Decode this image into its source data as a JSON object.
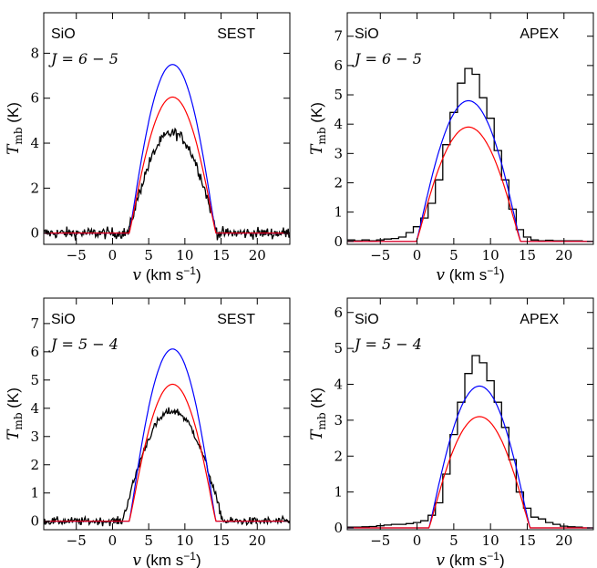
{
  "chart_data": [
    {
      "type": "line",
      "species": "SiO",
      "telescope": "SEST",
      "transition": "J = 6 − 5",
      "xlabel": "v (km s⁻¹)",
      "ylabel": "Tmb (K)",
      "xlim": [
        -9.5,
        24.5
      ],
      "ylim": [
        -0.5,
        9.8
      ],
      "xticks": [
        -5,
        0,
        5,
        10,
        15,
        20
      ],
      "yticks": [
        0,
        2,
        4,
        6,
        8
      ],
      "series": [
        {
          "color": "#000000",
          "style": "noisy",
          "peak": 4.45,
          "center": 8.3,
          "half_width": 6.2,
          "noise": 0.18
        },
        {
          "color": "#0000ff",
          "style": "model",
          "peak": 7.5,
          "center": 8.3,
          "half_width": 6.0
        },
        {
          "color": "#ff0000",
          "style": "model",
          "peak": 6.05,
          "center": 8.3,
          "half_width": 6.0
        }
      ]
    },
    {
      "type": "line",
      "species": "SiO",
      "telescope": "APEX",
      "transition": "J = 6 − 5",
      "xlabel": "v (km s⁻¹)",
      "ylabel": "Tmb (K)",
      "xlim": [
        -9.5,
        24
      ],
      "ylim": [
        -0.1,
        7.8
      ],
      "xticks": [
        -5,
        0,
        5,
        10,
        15,
        20
      ],
      "yticks": [
        0,
        1,
        2,
        3,
        4,
        5,
        6,
        7
      ],
      "series": [
        {
          "color": "#000000",
          "style": "step",
          "x": [
            -9,
            -8,
            -7,
            -6,
            -5,
            -4,
            -3,
            -2,
            -1,
            0,
            1,
            2,
            3,
            4,
            5,
            6,
            7,
            8,
            9,
            10,
            11,
            12,
            13,
            14,
            15,
            16,
            17,
            18,
            19,
            20,
            21,
            22,
            23
          ],
          "y": [
            0.05,
            0.02,
            0.05,
            0.02,
            0.05,
            0.08,
            0.1,
            0.15,
            0.3,
            0.5,
            0.8,
            1.3,
            2.1,
            3.3,
            4.4,
            5.4,
            5.9,
            5.7,
            4.9,
            4.2,
            3.1,
            2.1,
            1.1,
            0.4,
            0.15,
            0.05,
            0.02,
            0.04,
            0.02,
            0.02,
            0.02,
            0.02,
            0.0
          ]
        },
        {
          "color": "#0000ff",
          "style": "model",
          "peak": 4.8,
          "center": 7.0,
          "half_width": 7.1
        },
        {
          "color": "#ff0000",
          "style": "model",
          "peak": 3.9,
          "center": 7.0,
          "half_width": 7.1
        }
      ]
    },
    {
      "type": "line",
      "species": "SiO",
      "telescope": "SEST",
      "transition": "J = 5 − 4",
      "xlabel": "v (km s⁻¹)",
      "ylabel": "Tmb (K)",
      "xlim": [
        -9.5,
        24.5
      ],
      "ylim": [
        -0.3,
        7.9
      ],
      "xticks": [
        -5,
        0,
        5,
        10,
        15,
        20
      ],
      "yticks": [
        0,
        1,
        2,
        3,
        4,
        5,
        6,
        7
      ],
      "series": [
        {
          "color": "#000000",
          "style": "noisy",
          "peak": 3.9,
          "center": 8.3,
          "half_width": 7.0,
          "noise": 0.1
        },
        {
          "color": "#0000ff",
          "style": "model",
          "peak": 6.1,
          "center": 8.3,
          "half_width": 6.0
        },
        {
          "color": "#ff0000",
          "style": "model",
          "peak": 4.85,
          "center": 8.3,
          "half_width": 6.0
        }
      ]
    },
    {
      "type": "line",
      "species": "SiO",
      "telescope": "APEX",
      "transition": "J = 5 − 4",
      "xlabel": "v (km s⁻¹)",
      "ylabel": "Tmb (K)",
      "xlim": [
        -9.5,
        24
      ],
      "ylim": [
        -0.05,
        6.4
      ],
      "xticks": [
        -5,
        0,
        5,
        10,
        15,
        20
      ],
      "yticks": [
        0,
        1,
        2,
        3,
        4,
        5,
        6
      ],
      "series": [
        {
          "color": "#000000",
          "style": "step",
          "x": [
            -9,
            -8,
            -7,
            -6,
            -5,
            -4,
            -3,
            -2,
            -1,
            0,
            1,
            2,
            3,
            4,
            5,
            6,
            7,
            8,
            9,
            10,
            11,
            12,
            13,
            14,
            15,
            16,
            17,
            18,
            19,
            20,
            21,
            22,
            23
          ],
          "y": [
            0.02,
            0.02,
            0.03,
            0.04,
            0.06,
            0.08,
            0.1,
            0.1,
            0.12,
            0.15,
            0.2,
            0.35,
            0.7,
            1.5,
            2.6,
            3.5,
            4.3,
            4.8,
            4.6,
            4.1,
            3.5,
            2.8,
            1.9,
            1.0,
            0.55,
            0.3,
            0.25,
            0.15,
            0.1,
            0.05,
            0.03,
            0.02,
            0.0
          ]
        },
        {
          "color": "#0000ff",
          "style": "model",
          "peak": 3.95,
          "center": 8.5,
          "half_width": 6.9
        },
        {
          "color": "#ff0000",
          "style": "model",
          "peak": 3.1,
          "center": 8.5,
          "half_width": 6.9
        }
      ]
    }
  ]
}
